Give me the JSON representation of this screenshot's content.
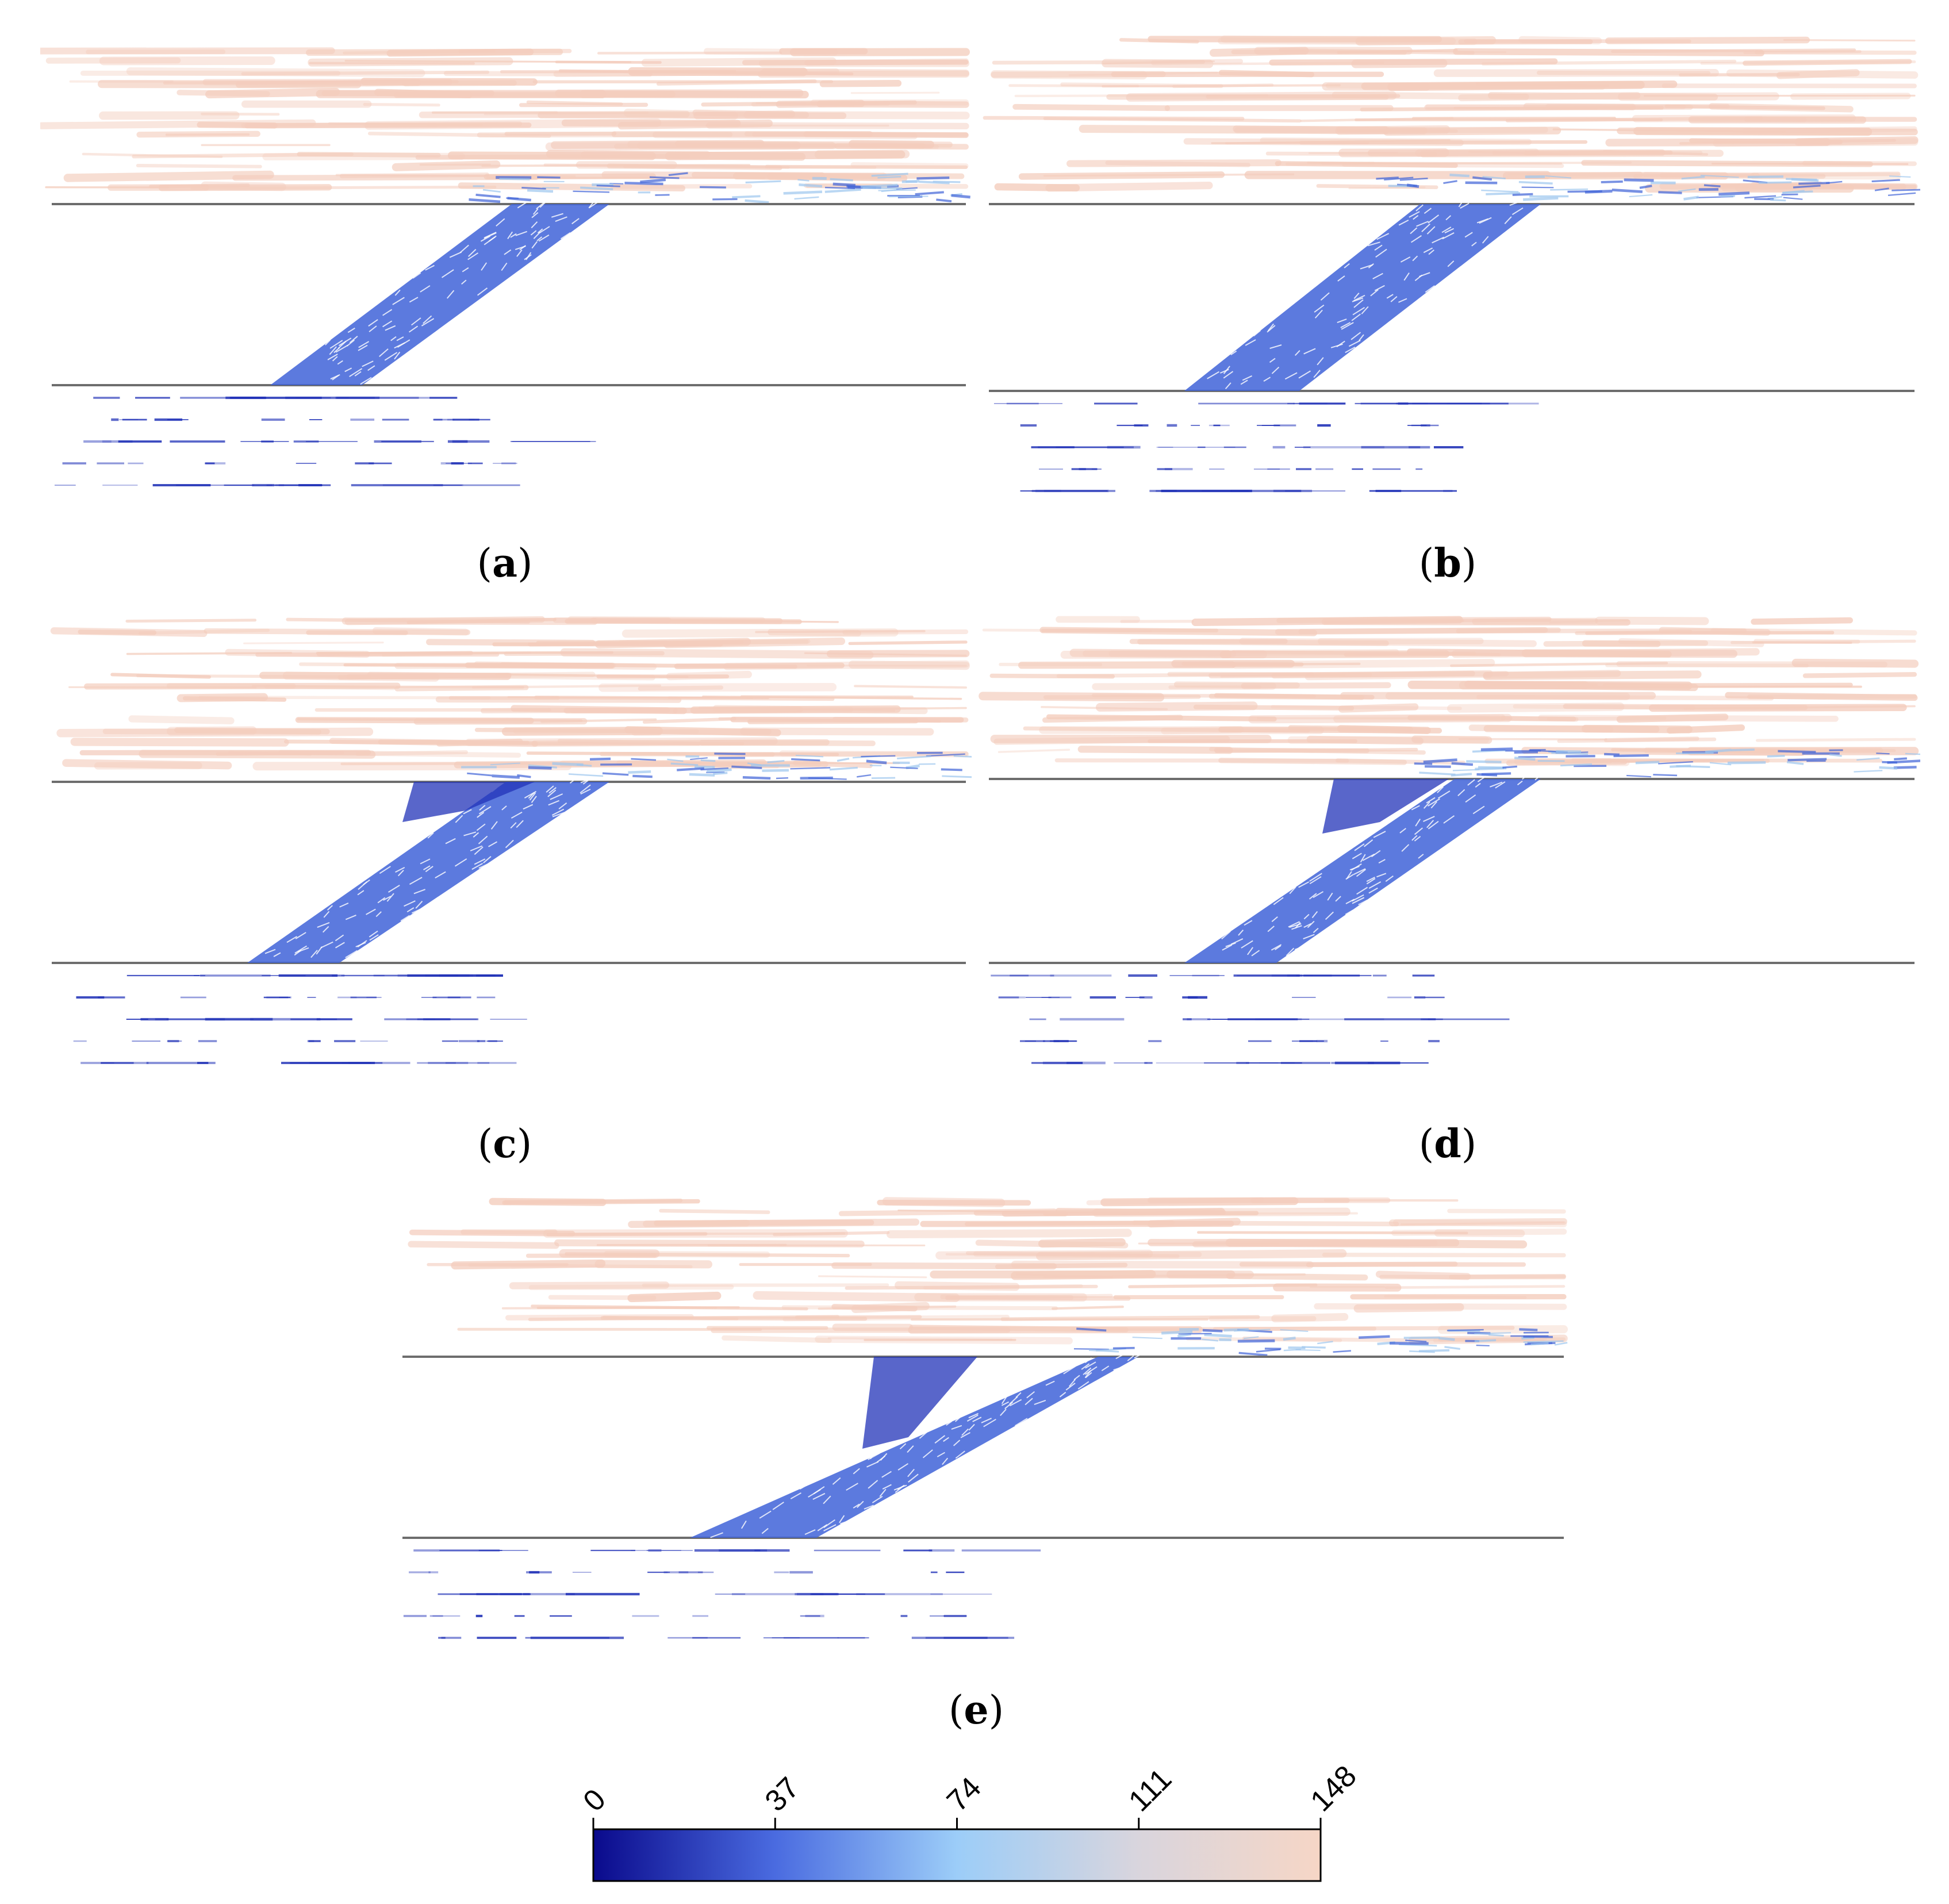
{
  "figure": {
    "panels": [
      {
        "id": "a",
        "label": "a"
      },
      {
        "id": "b",
        "label": "b"
      },
      {
        "id": "c",
        "label": "c"
      },
      {
        "id": "d",
        "label": "d"
      },
      {
        "id": "e",
        "label": "e"
      }
    ]
  },
  "colorbar": {
    "ticks": [
      "0",
      "37",
      "74",
      "111",
      "148"
    ],
    "colors": {
      "low": "#0a0a8c",
      "mid_low": "#4a6be0",
      "mid": "#9ccdf8",
      "mid_high": "#d9d5dd",
      "high": "#f6d6c6"
    }
  },
  "colors": {
    "wall_line": "#6d6d6d",
    "slow_vector": "#2233b8",
    "jet_vector": "#3f63d8",
    "fast_vector": "#f4cdbd"
  }
}
